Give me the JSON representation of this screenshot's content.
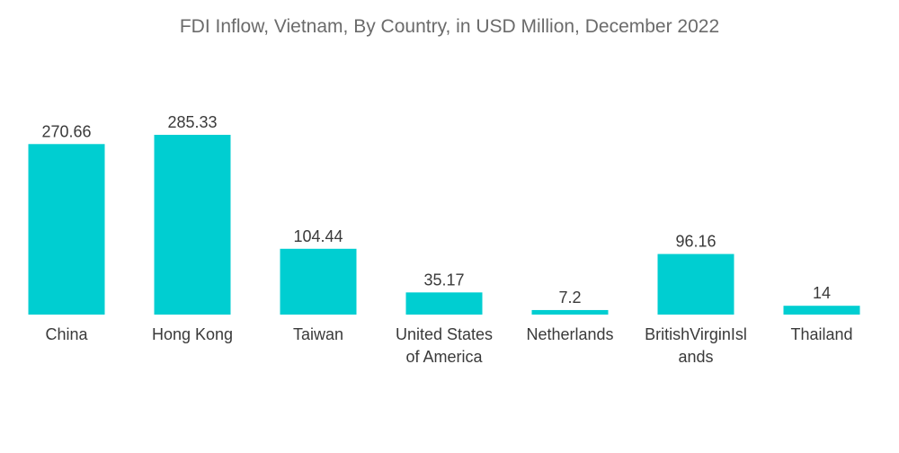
{
  "chart_data": {
    "type": "bar",
    "title": "FDI Inflow, Vietnam, By Country, in USD Million, December 2022",
    "categories": [
      [
        "China"
      ],
      [
        "Hong Kong"
      ],
      [
        "Taiwan"
      ],
      [
        "United States",
        "of America"
      ],
      [
        "Netherlands"
      ],
      [
        "BritishVirginIsl",
        "ands"
      ],
      [
        "Thailand"
      ]
    ],
    "values": [
      270.66,
      285.33,
      104.44,
      35.17,
      7.2,
      96.16,
      14
    ],
    "value_labels": [
      "270.66",
      "285.33",
      "104.44",
      "35.17",
      "7.2",
      "96.16",
      "14"
    ],
    "bar_color": "#00CED1",
    "xlabel": "",
    "ylabel": "",
    "grid": false,
    "legend": "none"
  }
}
